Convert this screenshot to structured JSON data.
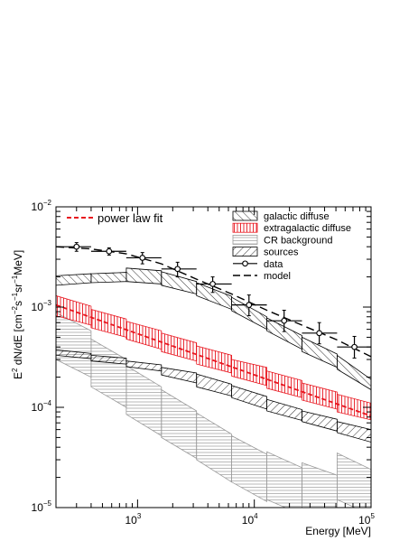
{
  "chart_data": {
    "type": "line",
    "x_scale": "log",
    "y_scale": "log",
    "xlim": [
      200,
      100000
    ],
    "ylim": [
      1e-05,
      0.01
    ],
    "xlabel": "Energy [MeV]",
    "ylabel_main": "E",
    "ylabel_sup": "2",
    "ylabel_mid": " dN/dE [cm",
    "ylabel_sup2": "−2",
    "ylabel_s": "s",
    "ylabel_sup3": "−1",
    "ylabel_sr": "sr",
    "ylabel_sup4": "−1",
    "ylabel_end": "MeV]",
    "x_ticks": [
      {
        "value": 1000,
        "base": "10",
        "exp": "3"
      },
      {
        "value": 10000,
        "base": "10",
        "exp": "4"
      },
      {
        "value": 100000,
        "base": "10",
        "exp": "5"
      }
    ],
    "y_ticks": [
      {
        "value": 1e-05,
        "base": "10",
        "exp": "−5"
      },
      {
        "value": 0.0001,
        "base": "10",
        "exp": "−4"
      },
      {
        "value": 0.001,
        "base": "10",
        "exp": "−3"
      },
      {
        "value": 0.01,
        "base": "10",
        "exp": "−2"
      }
    ],
    "legend_fit": "power law fit",
    "legend": [
      {
        "label": "galactic diffuse",
        "style": "hatch-diag"
      },
      {
        "label": "extragalactic diffuse",
        "style": "hatch-red"
      },
      {
        "label": "CR background",
        "style": "hatch-horiz"
      },
      {
        "label": "sources",
        "style": "hatch-back"
      },
      {
        "label": "data",
        "style": "marker"
      },
      {
        "label": "model",
        "style": "dashed"
      }
    ],
    "bin_edges": [
      200,
      400,
      800,
      1600,
      3200,
      6400,
      12800,
      25600,
      51200,
      100000
    ],
    "series": [
      {
        "name": "galactic diffuse",
        "lower": [
          0.00165,
          0.00175,
          0.0018,
          0.00165,
          0.0013,
          0.00092,
          0.00058,
          0.00036,
          0.00024
        ],
        "upper": [
          0.00205,
          0.00215,
          0.00245,
          0.00225,
          0.00175,
          0.00125,
          0.00078,
          0.0005,
          0.00033
        ],
        "lower_end": [
          0.00175,
          0.0018,
          0.0017,
          0.00135,
          0.00095,
          0.0006,
          0.00038,
          0.00025,
          0.00015
        ],
        "upper_end": [
          0.00215,
          0.00222,
          0.0023,
          0.0018,
          0.00128,
          0.0008,
          0.00052,
          0.00034,
          0.00019
        ]
      },
      {
        "name": "extragalactic diffuse",
        "lower": [
          0.00082,
          0.00062,
          0.00048,
          0.00036,
          0.00027,
          0.000205,
          0.000155,
          0.000118,
          9e-05
        ],
        "upper": [
          0.0013,
          0.00095,
          0.00072,
          0.00055,
          0.00041,
          0.0003,
          0.00023,
          0.000175,
          0.000135
        ],
        "lower_end": [
          0.00066,
          0.0005,
          0.00038,
          0.00029,
          0.00022,
          0.000165,
          0.000125,
          9.6e-05,
          7.5e-05
        ],
        "upper_end": [
          0.00102,
          0.00076,
          0.00058,
          0.00044,
          0.00033,
          0.00025,
          0.000185,
          0.000142,
          0.00011
        ]
      },
      {
        "name": "CR background",
        "lower": [
          0.0003,
          0.00016,
          8.5e-05,
          5e-05,
          3e-05,
          1.8e-05,
          1.2e-05,
          9.5e-06,
          1.2e-05
        ],
        "upper": [
          0.00088,
          0.00048,
          0.00026,
          0.00015,
          8.8e-05,
          5.2e-05,
          3.6e-05,
          2.8e-05,
          3.5e-05
        ],
        "lower_end": [
          0.0002,
          0.0001,
          5.2e-05,
          3.1e-05,
          1.8e-05,
          1.15e-05,
          8.5e-06,
          7.5e-06,
          8.5e-06
        ],
        "upper_end": [
          0.00058,
          0.0003,
          0.00016,
          9.2e-05,
          5.4e-05,
          3.4e-05,
          2.5e-05,
          2.1e-05,
          2.4e-05
        ]
      },
      {
        "name": "sources",
        "lower": [
          0.00033,
          0.00029,
          0.000255,
          0.00021,
          0.00016,
          0.000125,
          9.2e-05,
          7.2e-05,
          5.6e-05
        ],
        "upper": [
          0.000375,
          0.00033,
          0.00029,
          0.00025,
          0.000215,
          0.000165,
          0.00012,
          9.2e-05,
          7.2e-05
        ],
        "lower_end": [
          0.000305,
          0.00027,
          0.00023,
          0.000175,
          0.00013,
          9.6e-05,
          7.4e-05,
          5.8e-05,
          4.5e-05
        ],
        "upper_end": [
          0.000345,
          0.00031,
          0.000265,
          0.00022,
          0.00017,
          0.000128,
          9.5e-05,
          7.6e-05,
          6e-05
        ]
      }
    ],
    "data_points": [
      {
        "x": 300,
        "y": 0.004,
        "xlo": 200,
        "xhi": 400,
        "ylo": 0.0036,
        "yhi": 0.0044
      },
      {
        "x": 570,
        "y": 0.0036,
        "xlo": 400,
        "xhi": 800,
        "ylo": 0.0033,
        "yhi": 0.0039
      },
      {
        "x": 1100,
        "y": 0.0031,
        "xlo": 800,
        "xhi": 1600,
        "ylo": 0.0027,
        "yhi": 0.0035
      },
      {
        "x": 2200,
        "y": 0.0024,
        "xlo": 1600,
        "xhi": 3200,
        "ylo": 0.002,
        "yhi": 0.0028
      },
      {
        "x": 4400,
        "y": 0.0017,
        "xlo": 3200,
        "xhi": 6400,
        "ylo": 0.0014,
        "yhi": 0.002
      },
      {
        "x": 9000,
        "y": 0.00105,
        "xlo": 6400,
        "xhi": 12800,
        "ylo": 0.00082,
        "yhi": 0.00132
      },
      {
        "x": 18000,
        "y": 0.00073,
        "xlo": 12800,
        "xhi": 25600,
        "ylo": 0.00057,
        "yhi": 0.00093
      },
      {
        "x": 36000,
        "y": 0.00055,
        "xlo": 25600,
        "xhi": 51200,
        "ylo": 0.00043,
        "yhi": 0.0007
      },
      {
        "x": 72000,
        "y": 0.0004,
        "xlo": 51200,
        "xhi": 100000,
        "ylo": 0.00031,
        "yhi": 0.00051
      }
    ],
    "model_line": {
      "x": [
        200,
        400,
        800,
        1600,
        3200,
        6400,
        12800,
        25600,
        51200,
        100000
      ],
      "y": [
        0.004,
        0.0038,
        0.0034,
        0.0027,
        0.0019,
        0.00135,
        0.00093,
        0.00066,
        0.00047,
        0.00032
      ]
    },
    "fit_line": {
      "x": [
        200,
        100000
      ],
      "y": [
        0.00105,
        8.2e-05
      ]
    },
    "colors": {
      "fit": "#e8141d",
      "extragalactic": "#e8141d",
      "cr": "#9a9a9a",
      "axis": "#000000"
    }
  }
}
